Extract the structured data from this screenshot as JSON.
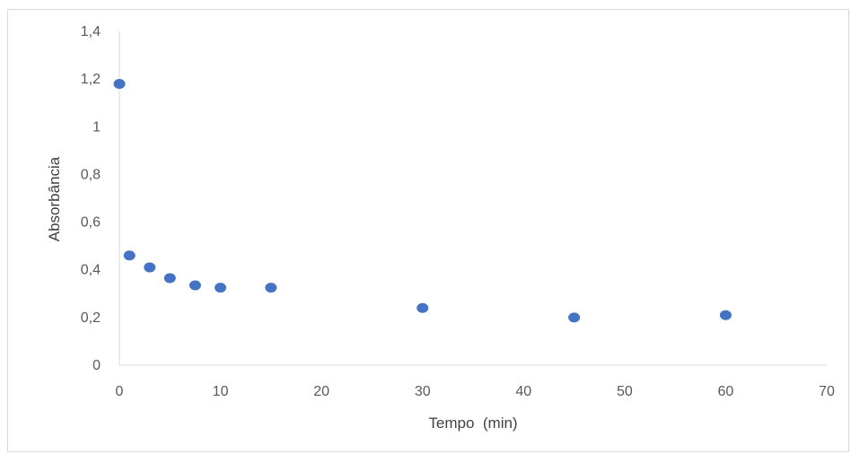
{
  "chart_data": {
    "type": "scatter",
    "title": "",
    "xlabel": "Tempo  (min)",
    "ylabel": "Absorbância",
    "xlim": [
      0,
      70
    ],
    "ylim": [
      0,
      1.4
    ],
    "x_ticks": [
      0,
      10,
      20,
      30,
      40,
      50,
      60,
      70
    ],
    "y_ticks": [
      0,
      0.2,
      0.4,
      0.6,
      0.8,
      1,
      1.2,
      1.4
    ],
    "x_tick_labels": [
      "0",
      "10",
      "20",
      "30",
      "40",
      "50",
      "60",
      "70"
    ],
    "y_tick_labels": [
      "0",
      "0,2",
      "0,4",
      "0,6",
      "0,8",
      "1",
      "1,2",
      "1,4"
    ],
    "grid": false,
    "legend": "none",
    "series": [
      {
        "color": "#4472c4",
        "points": [
          {
            "x": 0,
            "y": 1.18
          },
          {
            "x": 1,
            "y": 0.46
          },
          {
            "x": 3,
            "y": 0.41
          },
          {
            "x": 5,
            "y": 0.365
          },
          {
            "x": 7.5,
            "y": 0.335
          },
          {
            "x": 10,
            "y": 0.325
          },
          {
            "x": 15,
            "y": 0.325
          },
          {
            "x": 30,
            "y": 0.24
          },
          {
            "x": 45,
            "y": 0.2
          },
          {
            "x": 60,
            "y": 0.21
          }
        ]
      }
    ]
  }
}
